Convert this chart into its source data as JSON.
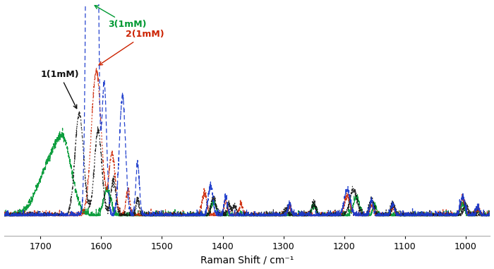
{
  "xlabel": "Raman Shift / cm⁻¹",
  "xlim": [
    960,
    1760
  ],
  "ylim_display": [
    -0.03,
    0.32
  ],
  "background_color": "#ffffff",
  "xlabel_fontsize": 10,
  "tick_fontsize": 9,
  "label1": "1(1mM)",
  "label2": "2(1mM)",
  "label3": "3(1mM)",
  "color1": "#111111",
  "color2": "#cc2200",
  "color3": "#009933",
  "color4": "#1a3acc",
  "xticks": [
    1700,
    1600,
    1500,
    1400,
    1300,
    1200,
    1100,
    1000
  ]
}
